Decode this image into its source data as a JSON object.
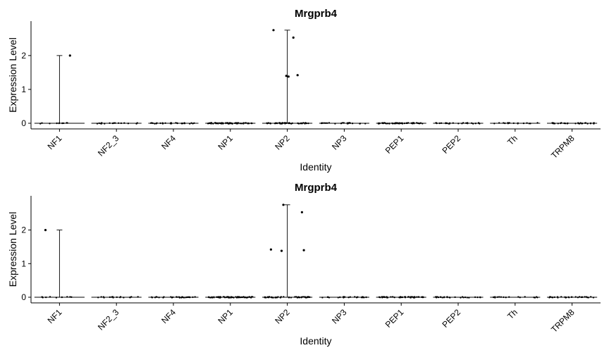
{
  "colors": {
    "points": "#000000",
    "axis": "#000000",
    "background": "#ffffff"
  },
  "chart_data": [
    {
      "type": "violin",
      "title": "Mrgprb4",
      "xlabel": "Identity",
      "ylabel": "Expression Level",
      "ylim": [
        0,
        2.85
      ],
      "yticks": [
        0,
        1,
        2
      ],
      "categories": [
        "NF1",
        "NF2_3",
        "NF4",
        "NP1",
        "NP2",
        "NP3",
        "PEP1",
        "PEP2",
        "Th",
        "TRPM8"
      ],
      "violin_max": [
        2.0,
        0,
        0,
        0,
        2.75,
        0,
        0,
        0,
        0,
        0
      ],
      "points": [
        {
          "category": "NF1",
          "y": 2.0
        },
        {
          "category": "NP2",
          "y": 1.42
        },
        {
          "category": "NP2",
          "y": 1.4
        },
        {
          "category": "NP2",
          "y": 1.38
        },
        {
          "category": "NP2",
          "y": 2.53
        },
        {
          "category": "NP2",
          "y": 2.75
        }
      ],
      "zero_counts": [
        10,
        16,
        28,
        60,
        45,
        22,
        50,
        24,
        16,
        28
      ]
    },
    {
      "type": "violin",
      "title": "Mrgprb4",
      "xlabel": "Identity",
      "ylabel": "Expression Level",
      "ylim": [
        0,
        2.85
      ],
      "yticks": [
        0,
        1,
        2
      ],
      "categories": [
        "NF1",
        "NF2_3",
        "NF4",
        "NP1",
        "NP2",
        "NP3",
        "PEP1",
        "PEP2",
        "Th",
        "TRPM8"
      ],
      "violin_max": [
        2.0,
        0,
        0,
        0,
        2.75,
        0,
        0,
        0,
        0,
        0
      ],
      "points": [
        {
          "category": "NF1",
          "y": 2.0
        },
        {
          "category": "NP2",
          "y": 1.42
        },
        {
          "category": "NP2",
          "y": 1.4
        },
        {
          "category": "NP2",
          "y": 1.38
        },
        {
          "category": "NP2",
          "y": 2.53
        },
        {
          "category": "NP2",
          "y": 2.75
        }
      ],
      "zero_counts": [
        10,
        16,
        28,
        60,
        45,
        22,
        50,
        24,
        16,
        28
      ]
    }
  ]
}
